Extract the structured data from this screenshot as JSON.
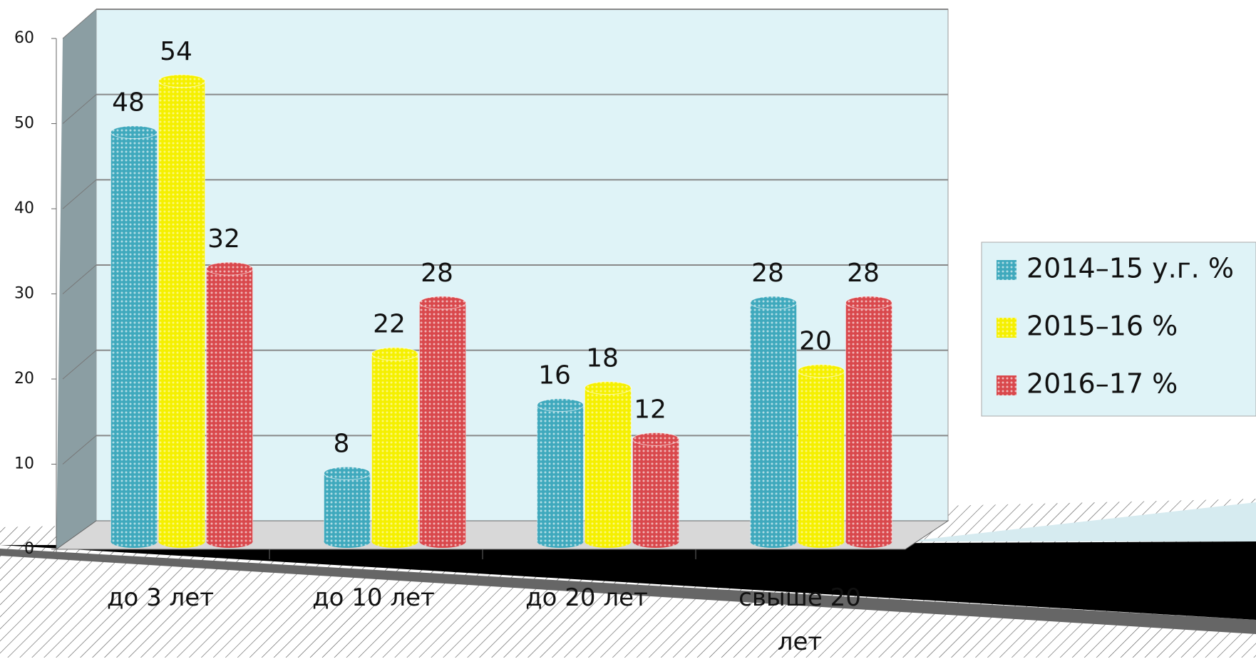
{
  "chart_data": {
    "type": "bar",
    "categories": [
      "до 3 лет",
      "до 10 лет",
      "до 20 лет",
      "свыше 20 лет"
    ],
    "series": [
      {
        "name": "2014–15 у.г. %",
        "color": "#3fa9bd",
        "values": [
          48,
          8,
          16,
          28
        ]
      },
      {
        "name": "2015–16 %",
        "color": "#f5f000",
        "values": [
          54,
          22,
          18,
          20
        ]
      },
      {
        "name": "2016–17 %",
        "color": "#d9484c",
        "values": [
          32,
          28,
          12,
          28
        ]
      }
    ],
    "ylim": [
      0,
      60
    ],
    "yticks": [
      0,
      10,
      20,
      30,
      40,
      50,
      60
    ],
    "grid": true,
    "legend": "right"
  }
}
